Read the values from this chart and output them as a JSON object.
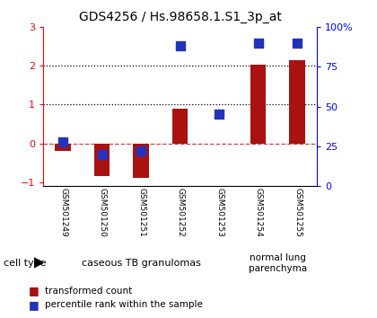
{
  "title": "GDS4256 / Hs.98658.1.S1_3p_at",
  "samples": [
    "GSM501249",
    "GSM501250",
    "GSM501251",
    "GSM501252",
    "GSM501253",
    "GSM501254",
    "GSM501255"
  ],
  "transformed_count": [
    -0.2,
    -0.85,
    -0.9,
    0.9,
    -0.02,
    2.02,
    2.15
  ],
  "percentile_rank_pct": [
    28,
    20,
    22,
    88,
    45,
    90,
    90
  ],
  "ylim": [
    -1.1,
    3.0
  ],
  "ylim_right": [
    0,
    100
  ],
  "yticks_left": [
    -1,
    0,
    1,
    2,
    3
  ],
  "yticks_right": [
    0,
    25,
    50,
    75,
    100
  ],
  "ytick_labels_right": [
    "0",
    "25",
    "50",
    "75",
    "100%"
  ],
  "hlines": [
    1,
    2
  ],
  "hline_zero_color": "#cc2222",
  "hline_color": "black",
  "bar_color": "#aa1111",
  "dot_color": "#2233bb",
  "group1_label": "caseous TB granulomas",
  "group1_samples": [
    0,
    1,
    2,
    3,
    4
  ],
  "group2_label": "normal lung\nparenchyma",
  "group2_samples": [
    5,
    6
  ],
  "group_bg1": "#cceecc",
  "group_bg2": "#88cc88",
  "cell_type_label": "cell type",
  "legend1": "transformed count",
  "legend2": "percentile rank within the sample",
  "plot_bg": "#ffffff",
  "tick_area_bg": "#c8c8c8",
  "bar_width": 0.4,
  "dot_size": 45
}
